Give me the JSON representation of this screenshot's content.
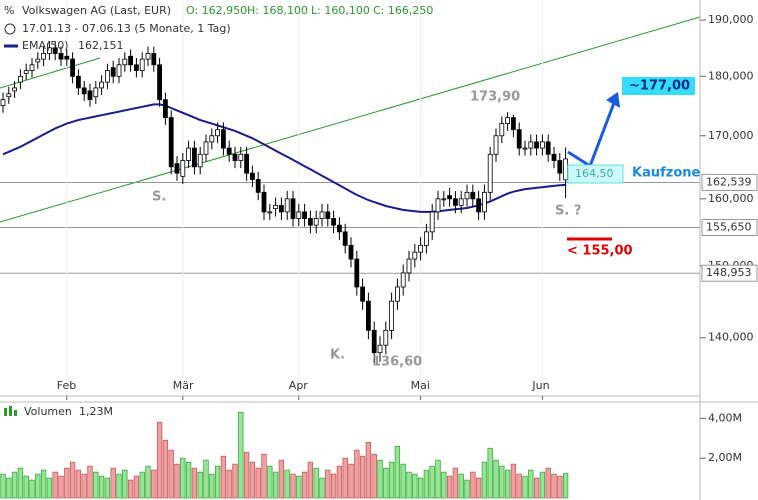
{
  "chart_data": {
    "type": "candlestick",
    "title": "Volkswagen AG (Last, EUR)",
    "ohlc_labels": [
      "O: 162,950",
      "H: 168,100",
      "L: 160,100",
      "C: 166,250"
    ],
    "period": "17.01.13 - 07.06.13 (5 Monate, 1 Tag)",
    "categories": [
      null,
      null,
      null,
      null,
      null,
      null,
      null,
      null,
      null,
      null,
      null,
      "Feb",
      null,
      null,
      null,
      null,
      null,
      null,
      null,
      null,
      null,
      null,
      null,
      null,
      null,
      null,
      null,
      null,
      null,
      null,
      null,
      "Mär",
      null,
      null,
      null,
      null,
      null,
      null,
      null,
      null,
      null,
      null,
      null,
      null,
      null,
      null,
      null,
      null,
      null,
      null,
      null,
      "Apr",
      null,
      null,
      null,
      null,
      null,
      null,
      null,
      null,
      null,
      null,
      null,
      null,
      null,
      null,
      null,
      null,
      null,
      null,
      null,
      null,
      "Mai",
      null,
      null,
      null,
      null,
      null,
      null,
      null,
      null,
      null,
      null,
      null,
      null,
      null,
      null,
      null,
      null,
      null,
      null,
      null,
      null,
      "Jun",
      null,
      null,
      null,
      null
    ],
    "open": [
      175,
      176.5,
      177.5,
      179,
      180.5,
      181,
      182.5,
      183,
      184,
      185,
      184,
      183.5,
      183,
      180,
      178,
      177.5,
      176.5,
      178,
      179,
      181.5,
      180,
      182,
      183.5,
      182,
      181,
      183,
      184,
      182,
      176,
      173,
      165.5,
      163.5,
      166,
      168,
      165,
      167,
      169,
      170,
      171,
      168,
      167,
      166,
      167,
      164,
      163,
      161,
      158,
      158.5,
      159,
      158,
      160,
      157,
      158,
      157,
      156,
      157,
      158,
      157,
      156,
      155,
      153,
      151,
      147,
      145,
      141,
      138,
      139,
      141,
      145,
      147,
      149,
      151,
      152,
      153,
      155,
      158,
      160,
      160.5,
      160,
      159,
      160,
      161,
      160,
      158,
      161,
      167,
      170,
      172,
      173,
      171,
      168,
      168,
      169,
      168,
      169,
      167,
      166,
      162.95
    ],
    "high": [
      177.2,
      178.2,
      179.2,
      181.2,
      182.2,
      183.2,
      184.2,
      185.2,
      186.2,
      186.2,
      185.2,
      184.7,
      184.2,
      181.2,
      179.2,
      178.7,
      179.2,
      180.2,
      182.2,
      182.7,
      183.2,
      184.2,
      184.7,
      183.2,
      184.2,
      185.2,
      185.2,
      183.2,
      177.2,
      174.2,
      166.7,
      167.2,
      169.2,
      169.2,
      168.2,
      170.2,
      171.2,
      172.2,
      172.2,
      169.2,
      168.2,
      168.2,
      168.2,
      165.2,
      164.2,
      162.2,
      159.2,
      160.2,
      160.2,
      161.2,
      161.2,
      159.2,
      159.2,
      158.2,
      158.2,
      159.2,
      159.2,
      158.2,
      157.2,
      156.2,
      154.2,
      152.2,
      148.2,
      146.2,
      142.2,
      140.2,
      142.2,
      146.2,
      148.2,
      150.2,
      152.2,
      153.2,
      154.2,
      156.2,
      159.2,
      161.2,
      161.2,
      161.7,
      161.2,
      161.2,
      162.2,
      162.2,
      161.2,
      162.2,
      168.2,
      171.2,
      173.2,
      173.9,
      173.5,
      172.2,
      169.2,
      170.2,
      170.2,
      170.2,
      170.2,
      168.2,
      167.2,
      168.1
    ],
    "low": [
      173.8,
      175.3,
      176.3,
      177.8,
      179.3,
      179.8,
      181.3,
      181.8,
      182.8,
      182.8,
      181.8,
      181.8,
      178.8,
      176.8,
      175.8,
      174.8,
      175.3,
      176.8,
      177.8,
      178.8,
      178.8,
      180.8,
      180.8,
      179.8,
      179.8,
      181.8,
      180.8,
      174.8,
      171.8,
      163.8,
      162.8,
      162.3,
      164.8,
      163.8,
      163.8,
      165.8,
      167.8,
      168.8,
      166.8,
      165.8,
      164.8,
      164.8,
      162.8,
      161.8,
      159.8,
      156.8,
      156.8,
      157.3,
      156.8,
      156.8,
      155.8,
      155.8,
      155.8,
      154.8,
      154.8,
      155.8,
      155.8,
      154.8,
      153.8,
      151.8,
      149.8,
      145.8,
      143.8,
      139.8,
      136.6,
      136.8,
      137.8,
      139.8,
      143.8,
      145.8,
      147.8,
      149.8,
      150.8,
      151.8,
      153.8,
      156.8,
      158.8,
      158.8,
      157.8,
      157.8,
      158.8,
      158.8,
      156.8,
      156.8,
      159.8,
      165.8,
      168.8,
      170.8,
      169.8,
      166.8,
      166.8,
      166.8,
      166.8,
      166.8,
      165.8,
      164.8,
      162.8,
      160.1
    ],
    "close": [
      176,
      177,
      178,
      180,
      181,
      182,
      183,
      184,
      185,
      184,
      183,
      183,
      180,
      178,
      177,
      176,
      178,
      179,
      181,
      180,
      182,
      183,
      182,
      181,
      183,
      184,
      182,
      176,
      173,
      165,
      164,
      166,
      168,
      165,
      167,
      169,
      170,
      171,
      168,
      167,
      166,
      167,
      164,
      163,
      161,
      158,
      158,
      159,
      158,
      160,
      157,
      158,
      157,
      156,
      157,
      158,
      157,
      156,
      155,
      153,
      151,
      147,
      145,
      141,
      138,
      139,
      141,
      145,
      147,
      149,
      151,
      152,
      153,
      155,
      158,
      160,
      160,
      160,
      159,
      160,
      161,
      160,
      158,
      161,
      167,
      170,
      172,
      173,
      171,
      168,
      168,
      169,
      168,
      169,
      167,
      166,
      164,
      166.25
    ],
    "ylim": [
      132.5,
      193.7
    ],
    "log": true,
    "yticks": [
      {
        "value": 190,
        "label": "190,000"
      },
      {
        "value": 180,
        "label": "180,000"
      },
      {
        "value": 170,
        "label": "170,000"
      },
      {
        "value": 160,
        "label": "160,000"
      },
      {
        "value": 150,
        "label": "150,000"
      },
      {
        "value": 140,
        "label": "140,000"
      }
    ],
    "overlay": {
      "name": "EMA(50)",
      "label": "162,151",
      "color": "#1c1c8c",
      "values": [
        167,
        167.4,
        167.8,
        168.2,
        168.7,
        169.2,
        169.7,
        170.2,
        170.7,
        171.2,
        171.6,
        172,
        172.3,
        172.6,
        172.8,
        173,
        173.2,
        173.4,
        173.6,
        173.8,
        174,
        174.2,
        174.4,
        174.6,
        174.8,
        175,
        175.2,
        175.2,
        175,
        174.6,
        174.2,
        173.8,
        173.4,
        173,
        172.6,
        172.3,
        172,
        171.7,
        171.4,
        171.1,
        170.8,
        170.4,
        170,
        169.6,
        169.1,
        168.6,
        168.1,
        167.6,
        167.1,
        166.6,
        166.1,
        165.6,
        165.1,
        164.6,
        164.1,
        163.6,
        163.1,
        162.6,
        162.1,
        161.6,
        161.1,
        160.6,
        160.2,
        159.8,
        159.5,
        159.2,
        158.9,
        158.7,
        158.5,
        158.3,
        158.2,
        158.1,
        158,
        158,
        158,
        158.1,
        158.2,
        158.3,
        158.4,
        158.5,
        158.6,
        158.8,
        159,
        159.3,
        159.6,
        160,
        160.4,
        160.8,
        161.1,
        161.3,
        161.5,
        161.6,
        161.7,
        161.8,
        161.9,
        162,
        162.1,
        162.151
      ]
    },
    "reference_lines": [
      {
        "value": 162.539,
        "label": "162,539"
      },
      {
        "value": 155.65,
        "label": "155,650"
      },
      {
        "value": 148.953,
        "label": "148,953"
      }
    ],
    "annotations": [
      "173,90",
      "136,60",
      "S.",
      "S. ?",
      "K.",
      "~177,00",
      "< 155,00",
      "164,50",
      "Kaufzone"
    ],
    "up_color": "#ffffff",
    "down_color": "#000000",
    "volume": {
      "name": "Volumen",
      "label": "1,23M",
      "up_color": "#90e890",
      "down_color": "#f0a0a0",
      "values": [
        1.2,
        1.0,
        1.3,
        1.5,
        1.1,
        0.9,
        1.2,
        1.4,
        1.0,
        1.3,
        1.1,
        1.5,
        1.8,
        1.4,
        1.2,
        1.6,
        1.3,
        1.1,
        1.0,
        1.5,
        1.2,
        1.4,
        0.9,
        1.1,
        1.3,
        1.6,
        1.4,
        3.8,
        2.9,
        2.4,
        1.7,
        2.0,
        1.8,
        1.5,
        1.3,
        1.9,
        1.2,
        1.6,
        2.1,
        1.4,
        1.7,
        4.3,
        2.3,
        1.8,
        1.5,
        2.2,
        1.6,
        1.3,
        1.9,
        1.4,
        1.2,
        1.1,
        1.3,
        1.8,
        1.5,
        1.0,
        1.4,
        1.2,
        1.6,
        2.0,
        1.7,
        2.4,
        2.1,
        2.8,
        2.2,
        1.9,
        1.5,
        1.8,
        2.6,
        1.7,
        1.3,
        1.2,
        1.0,
        1.4,
        1.6,
        1.9,
        1.3,
        1.1,
        1.5,
        1.2,
        0.9,
        1.3,
        1.0,
        1.8,
        2.5,
        1.9,
        1.6,
        1.4,
        1.7,
        1.2,
        1.1,
        1.4,
        1.0,
        1.3,
        1.5,
        1.2,
        1.1,
        1.23
      ],
      "ylim": [
        0,
        4.77
      ],
      "yticks": [
        {
          "value": 4,
          "label": "4,00M"
        },
        {
          "value": 2,
          "label": "2,00M"
        }
      ]
    }
  }
}
